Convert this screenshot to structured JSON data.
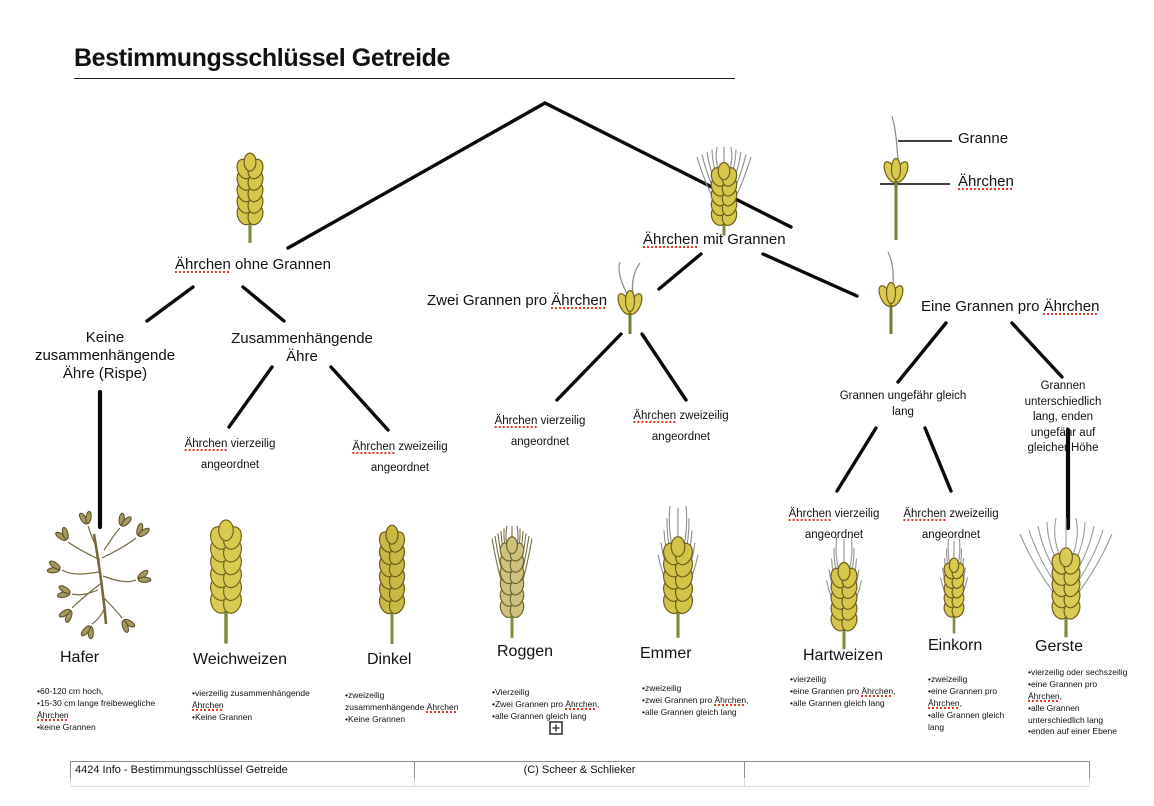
{
  "title": "Bestimmungsschlüssel Getreide",
  "spellcheck_words": [
    "Ährchen"
  ],
  "legend": {
    "granne_label": "Granne",
    "aehrchen_label": "Ährchen"
  },
  "tree": {
    "left": {
      "label": "Ährchen ohne Grannen",
      "children": [
        {
          "label": "Keine\nzusammenhängende\nÄhre (Rispe)",
          "result": "Hafer"
        },
        {
          "label": "Zusammenhängende\nÄhre",
          "children": [
            {
              "label": "Ährchen vierzeilig\nangeordnet",
              "result": "Weichweizen"
            },
            {
              "label": "Ährchen zweizeilig\nangeordnet",
              "result": "Dinkel"
            }
          ]
        }
      ]
    },
    "right": {
      "label": "Ährchen mit Grannen",
      "children": [
        {
          "label": "Zwei Grannen pro Ährchen",
          "children": [
            {
              "label": "Ährchen vierzeilig\nangeordnet",
              "result": "Roggen"
            },
            {
              "label": "Ährchen zweizeilig\nangeordnet",
              "result": "Emmer"
            }
          ]
        },
        {
          "label": "Eine Grannen pro Ährchen",
          "children": [
            {
              "label": "Grannen ungefähr gleich\nlang",
              "children": [
                {
                  "label": "Ährchen vierzeilig\nangeordnet",
                  "result": "Hartweizen"
                },
                {
                  "label": "Ährchen zweizeilig\nangeordnet",
                  "result": "Einkorn"
                }
              ]
            },
            {
              "label": "Grannen unterschiedlich\nlang, enden ungefähr auf\ngleicher Höhe",
              "result": "Gerste"
            }
          ]
        }
      ]
    }
  },
  "cereals": [
    {
      "name": "Hafer",
      "desc": [
        "•60-120 cm hoch,",
        "•15-30 cm lange freibewegliche",
        "Ährchen",
        "•keine Grannen"
      ]
    },
    {
      "name": "Weichweizen",
      "desc": [
        "•vierzeilig zusammenhängende",
        "Ährchen",
        "•Keine Grannen"
      ]
    },
    {
      "name": "Dinkel",
      "desc": [
        "•zweizeilig",
        "zusammenhängende Ährchen",
        "•Keine Grannen"
      ]
    },
    {
      "name": "Roggen",
      "desc": [
        "•Vierzeilig",
        "•Zwei Grannen pro Ährchen,",
        "•alle Grannen gleich lang"
      ]
    },
    {
      "name": "Emmer",
      "desc": [
        "•zweizeilig",
        "•zwei Grannen pro Ährchen,",
        "•alle Grannen gleich lang"
      ]
    },
    {
      "name": "Hartweizen",
      "desc": [
        "•vierzeilig",
        "•eine Grannen pro Ährchen,",
        "•alle Grannen gleich lang"
      ]
    },
    {
      "name": "Einkorn",
      "desc": [
        "•zweizeilig",
        "•eine Grannen pro",
        "Ährchen,",
        "•alle Grannen gleich",
        "lang"
      ]
    },
    {
      "name": "Gerste",
      "desc": [
        "•vierzeilig oder sechszeilig",
        "•eine Grannen pro",
        "Ährchen,",
        "•alle Grannen",
        "unterschiedlich lang",
        "•enden auf einer Ebene"
      ]
    }
  ],
  "footer": {
    "cells": [
      "4424 Info - Bestimmungsschlüssel Getreide",
      "(C) Scheer & Schlieker",
      ""
    ]
  }
}
